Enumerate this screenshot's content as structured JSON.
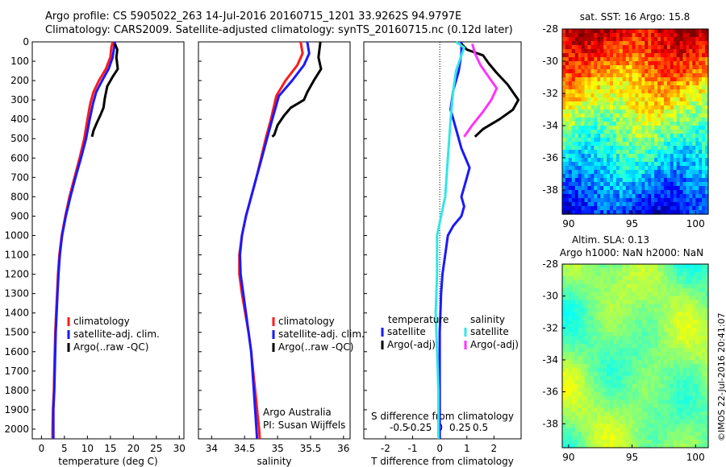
{
  "header": {
    "line1": "Argo profile: CS 5905022_263 14-Jul-2016 20160715_1201 33.9262S 94.9797E",
    "line2": "Climatology: CARS2009. Satellite-adjusted climatology: synTS_20160715.nc (0.12d later)"
  },
  "colors": {
    "climatology": "#ff1a1a",
    "satellite": "#1a1aff",
    "argo": "#000000",
    "salinity_satellite": "#33e6e6",
    "salinity_argo": "#ff33ff"
  },
  "chart_data": [
    {
      "type": "line",
      "xlabel": "temperature (deg C)",
      "ylabel": "",
      "xlim": [
        -2,
        31
      ],
      "ylim": [
        2050,
        0
      ],
      "xticks": [
        0,
        5,
        10,
        15,
        20,
        25,
        30
      ],
      "yticks": [
        0,
        100,
        200,
        300,
        400,
        500,
        600,
        700,
        800,
        900,
        1000,
        1100,
        1200,
        1300,
        1400,
        1500,
        1600,
        1700,
        1800,
        1900,
        2000
      ],
      "legend": [
        "climatology",
        "satellite-adj. clim.",
        "Argo(..raw -QC)"
      ],
      "series": [
        {
          "name": "climatology",
          "color": "#ff1a1a",
          "points": [
            [
              15.5,
              0
            ],
            [
              15.2,
              30
            ],
            [
              15.0,
              80
            ],
            [
              14.0,
              140
            ],
            [
              12.5,
              200
            ],
            [
              11.3,
              260
            ],
            [
              10.6,
              320
            ],
            [
              10.0,
              400
            ],
            [
              9.3,
              500
            ],
            [
              8.3,
              600
            ],
            [
              7.2,
              700
            ],
            [
              6.1,
              800
            ],
            [
              5.2,
              900
            ],
            [
              4.4,
              1000
            ],
            [
              3.9,
              1100
            ],
            [
              3.6,
              1200
            ],
            [
              3.4,
              1300
            ],
            [
              3.2,
              1400
            ],
            [
              3.0,
              1500
            ],
            [
              2.9,
              1600
            ],
            [
              2.8,
              1700
            ],
            [
              2.7,
              1800
            ],
            [
              2.5,
              1900
            ],
            [
              2.4,
              2000
            ],
            [
              2.4,
              2050
            ]
          ]
        },
        {
          "name": "satellite-adj. clim.",
          "color": "#1a1aff",
          "points": [
            [
              16.0,
              0
            ],
            [
              15.8,
              30
            ],
            [
              15.5,
              80
            ],
            [
              14.6,
              140
            ],
            [
              13.2,
              200
            ],
            [
              11.9,
              260
            ],
            [
              11.2,
              320
            ],
            [
              10.5,
              400
            ],
            [
              9.7,
              500
            ],
            [
              8.6,
              600
            ],
            [
              7.4,
              700
            ],
            [
              6.3,
              800
            ],
            [
              5.3,
              900
            ],
            [
              4.5,
              1000
            ],
            [
              4.0,
              1100
            ],
            [
              3.7,
              1200
            ],
            [
              3.5,
              1300
            ],
            [
              3.3,
              1400
            ],
            [
              3.1,
              1500
            ],
            [
              3.0,
              1600
            ],
            [
              2.9,
              1700
            ],
            [
              2.8,
              1800
            ],
            [
              2.6,
              1900
            ],
            [
              2.6,
              2000
            ],
            [
              2.6,
              2050
            ]
          ]
        },
        {
          "name": "Argo(..raw -QC)",
          "color": "#000000",
          "points": [
            [
              16.0,
              10
            ],
            [
              16.5,
              40
            ],
            [
              16.3,
              80
            ],
            [
              16.6,
              140
            ],
            [
              15.5,
              180
            ],
            [
              14.3,
              230
            ],
            [
              13.8,
              290
            ],
            [
              13.5,
              340
            ],
            [
              12.8,
              380
            ],
            [
              12.0,
              420
            ],
            [
              11.3,
              460
            ],
            [
              11.0,
              490
            ]
          ]
        }
      ]
    },
    {
      "type": "line",
      "xlabel": "salinity",
      "ylabel": "",
      "xlim": [
        33.8,
        36.1
      ],
      "ylim": [
        2050,
        0
      ],
      "xticks": [
        34,
        34.5,
        35,
        35.5,
        36
      ],
      "legend": [
        "climatology",
        "satellite-adj. clim.",
        "Argo(..raw -QC)"
      ],
      "annotations": [
        "Argo Australia",
        "PI: Susan Wijffels"
      ],
      "series": [
        {
          "name": "climatology",
          "color": "#ff1a1a",
          "points": [
            [
              35.35,
              0
            ],
            [
              35.38,
              60
            ],
            [
              35.3,
              120
            ],
            [
              35.12,
              200
            ],
            [
              34.98,
              280
            ],
            [
              34.9,
              400
            ],
            [
              34.82,
              500
            ],
            [
              34.75,
              600
            ],
            [
              34.68,
              700
            ],
            [
              34.6,
              800
            ],
            [
              34.52,
              900
            ],
            [
              34.46,
              1000
            ],
            [
              34.42,
              1100
            ],
            [
              34.42,
              1200
            ],
            [
              34.46,
              1300
            ],
            [
              34.51,
              1400
            ],
            [
              34.56,
              1500
            ],
            [
              34.6,
              1600
            ],
            [
              34.63,
              1700
            ],
            [
              34.66,
              1800
            ],
            [
              34.69,
              1900
            ],
            [
              34.72,
              2000
            ],
            [
              34.73,
              2050
            ]
          ]
        },
        {
          "name": "satellite-adj. clim.",
          "color": "#1a1aff",
          "points": [
            [
              35.45,
              0
            ],
            [
              35.48,
              60
            ],
            [
              35.4,
              120
            ],
            [
              35.22,
              200
            ],
            [
              35.02,
              280
            ],
            [
              34.92,
              400
            ],
            [
              34.84,
              500
            ],
            [
              34.76,
              600
            ],
            [
              34.68,
              700
            ],
            [
              34.6,
              800
            ],
            [
              34.52,
              900
            ],
            [
              34.46,
              1000
            ],
            [
              34.43,
              1100
            ],
            [
              34.44,
              1200
            ],
            [
              34.48,
              1300
            ],
            [
              34.52,
              1400
            ],
            [
              34.56,
              1500
            ],
            [
              34.6,
              1600
            ],
            [
              34.62,
              1700
            ],
            [
              34.64,
              1800
            ],
            [
              34.66,
              1900
            ],
            [
              34.68,
              2000
            ],
            [
              34.69,
              2050
            ]
          ]
        },
        {
          "name": "Argo(..raw -QC)",
          "color": "#000000",
          "points": [
            [
              35.65,
              0
            ],
            [
              35.62,
              80
            ],
            [
              35.66,
              140
            ],
            [
              35.55,
              200
            ],
            [
              35.45,
              260
            ],
            [
              35.4,
              300
            ],
            [
              35.2,
              340
            ],
            [
              35.1,
              380
            ],
            [
              35.0,
              430
            ],
            [
              34.95,
              480
            ],
            [
              34.92,
              490
            ]
          ]
        }
      ]
    },
    {
      "type": "line",
      "xlabel": "T difference from climatology",
      "ylabel": "",
      "xlim": [
        -2.8,
        3.0
      ],
      "ylim": [
        2050,
        0
      ],
      "xticks": [
        -2,
        -1,
        0,
        1,
        2
      ],
      "top_axis_label": "S difference from climatology",
      "top_xticks": [
        "-0.5",
        "-0.25",
        "0",
        "0.25",
        "0.5"
      ],
      "legend_titles": [
        "temperature",
        "salinity"
      ],
      "legend": [
        "satellite",
        "Argo(-adj)",
        "satellite",
        "Argo(-adj)"
      ],
      "series": [
        {
          "name": "satellite",
          "group": "temperature",
          "color": "#1a1aff",
          "points": [
            [
              0.8,
              0
            ],
            [
              0.8,
              60
            ],
            [
              0.7,
              150
            ],
            [
              0.5,
              250
            ],
            [
              0.4,
              350
            ],
            [
              0.6,
              450
            ],
            [
              0.8,
              550
            ],
            [
              1.1,
              650
            ],
            [
              1.0,
              700
            ],
            [
              0.9,
              750
            ],
            [
              0.8,
              800
            ],
            [
              0.9,
              850
            ],
            [
              0.8,
              900
            ],
            [
              0.5,
              950
            ],
            [
              0.3,
              1000
            ],
            [
              0.2,
              1100
            ],
            [
              0.1,
              1200
            ],
            [
              0.05,
              1300
            ],
            [
              0.0,
              1500
            ],
            [
              0.0,
              1700
            ],
            [
              0.0,
              2000
            ],
            [
              0.0,
              2050
            ]
          ]
        },
        {
          "name": "Argo(-adj)",
          "group": "temperature",
          "color": "#000000",
          "points": [
            [
              0.8,
              10
            ],
            [
              1.0,
              40
            ],
            [
              1.6,
              70
            ],
            [
              1.8,
              110
            ],
            [
              2.1,
              160
            ],
            [
              2.5,
              220
            ],
            [
              2.9,
              300
            ],
            [
              2.7,
              350
            ],
            [
              2.2,
              400
            ],
            [
              1.6,
              450
            ],
            [
              1.3,
              490
            ]
          ]
        },
        {
          "name": "satellite",
          "group": "salinity",
          "color": "#33e6e6",
          "points": [
            [
              0.6,
              0
            ],
            [
              0.9,
              30
            ],
            [
              0.8,
              70
            ],
            [
              0.6,
              150
            ],
            [
              0.5,
              250
            ],
            [
              0.4,
              400
            ],
            [
              0.3,
              600
            ],
            [
              0.2,
              800
            ],
            [
              0.05,
              900
            ],
            [
              -0.1,
              1000
            ],
            [
              -0.1,
              1200
            ],
            [
              -0.15,
              1400
            ],
            [
              -0.1,
              1600
            ],
            [
              -0.05,
              1800
            ],
            [
              -0.05,
              2000
            ],
            [
              -0.05,
              2050
            ]
          ]
        },
        {
          "name": "Argo(-adj)",
          "group": "salinity",
          "color": "#ff33ff",
          "points": [
            [
              1.2,
              10
            ],
            [
              1.3,
              60
            ],
            [
              1.5,
              120
            ],
            [
              1.8,
              180
            ],
            [
              2.1,
              240
            ],
            [
              1.9,
              300
            ],
            [
              1.6,
              360
            ],
            [
              1.2,
              430
            ],
            [
              0.9,
              490
            ]
          ]
        }
      ]
    },
    {
      "type": "heatmap",
      "title": "sat. SST: 16 Argo: 15.8",
      "xlim": [
        89.5,
        101
      ],
      "ylim": [
        -39.5,
        -28
      ],
      "xticks": [
        "90",
        "95",
        "100"
      ],
      "yticks": [
        "-28",
        "-30",
        "-32",
        "-34",
        "-36",
        "-38"
      ],
      "colormap": "jet",
      "description_values": [
        [
          -28,
          24
        ],
        [
          -31,
          22
        ],
        [
          -33,
          19
        ],
        [
          -35,
          17
        ],
        [
          -37,
          15
        ],
        [
          -39,
          13
        ]
      ]
    },
    {
      "type": "heatmap",
      "title": "Altim. SLA: 0.13",
      "subtitle": "Argo h1000: NaN h2000: NaN",
      "xlim": [
        89.5,
        101
      ],
      "ylim": [
        -39.5,
        -28
      ],
      "xticks": [
        "90",
        "95",
        "100"
      ],
      "yticks": [
        "-28",
        "-30",
        "-32",
        "-34",
        "-36",
        "-38"
      ],
      "colormap": "jet"
    }
  ],
  "footer": {
    "credit": "©IMOS 22-Jul-2016 20:41:07"
  }
}
